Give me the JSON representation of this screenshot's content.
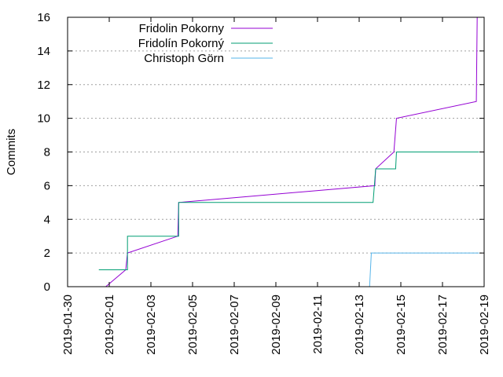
{
  "chart_data": {
    "type": "line",
    "title": "",
    "xlabel": "",
    "ylabel": "Commits",
    "xlim": [
      "2019-01-30",
      "2019-02-19"
    ],
    "ylim": [
      0,
      16
    ],
    "x_ticks": [
      "2019-01-30",
      "2019-02-01",
      "2019-02-03",
      "2019-02-05",
      "2019-02-07",
      "2019-02-09",
      "2019-02-11",
      "2019-02-13",
      "2019-02-15",
      "2019-02-17",
      "2019-02-19"
    ],
    "y_ticks": [
      0,
      2,
      4,
      6,
      8,
      10,
      12,
      14,
      16
    ],
    "grid": true,
    "legend_position": "top-left",
    "series": [
      {
        "name": "Fridolin Pokorny",
        "color": "#9400d3",
        "points": [
          {
            "x": "2019-01-31T20:00",
            "y": 0
          },
          {
            "x": "2019-02-01T19:00",
            "y": 1
          },
          {
            "x": "2019-02-01T21:00",
            "y": 2
          },
          {
            "x": "2019-02-04T07:00",
            "y": 3
          },
          {
            "x": "2019-02-04T08:00",
            "y": 5
          },
          {
            "x": "2019-02-13T18:00",
            "y": 6
          },
          {
            "x": "2019-02-13T19:00",
            "y": 7
          },
          {
            "x": "2019-02-14T16:00",
            "y": 8
          },
          {
            "x": "2019-02-14T19:00",
            "y": 10
          },
          {
            "x": "2019-02-18T15:00",
            "y": 11
          },
          {
            "x": "2019-02-18T16:00",
            "y": 16
          }
        ]
      },
      {
        "name": "Fridolín Pokorný",
        "color": "#009e73",
        "points": [
          {
            "x": "2019-01-31T12:00",
            "y": 1
          },
          {
            "x": "2019-02-01T21:00",
            "y": 1
          },
          {
            "x": "2019-02-01T21:00",
            "y": 3
          },
          {
            "x": "2019-02-04T08:00",
            "y": 3
          },
          {
            "x": "2019-02-04T08:00",
            "y": 5
          },
          {
            "x": "2019-02-13T16:00",
            "y": 5
          },
          {
            "x": "2019-02-13T19:00",
            "y": 7
          },
          {
            "x": "2019-02-14T18:00",
            "y": 7
          },
          {
            "x": "2019-02-14T19:00",
            "y": 8
          },
          {
            "x": "2019-02-18T18:00",
            "y": 8
          }
        ]
      },
      {
        "name": "Christoph Görn",
        "color": "#56b4e9",
        "points": [
          {
            "x": "2019-02-13T12:00",
            "y": 0
          },
          {
            "x": "2019-02-13T14:00",
            "y": 2
          },
          {
            "x": "2019-02-18T18:00",
            "y": 2
          }
        ]
      }
    ]
  }
}
